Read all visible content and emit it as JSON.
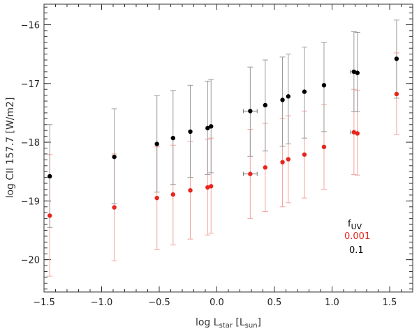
{
  "chart_data": {
    "type": "scatter",
    "title": "",
    "xlabel": "log L_star [L_sun]",
    "ylabel": "log CII 157.7 [W/m2]",
    "xlim": [
      -1.5,
      1.7
    ],
    "ylim": [
      -20.55,
      -15.65
    ],
    "xticks": [
      -1.5,
      -1.0,
      -0.5,
      0.0,
      0.5,
      1.0,
      1.5
    ],
    "xtick_labels": [
      "−1.5",
      "−1.0",
      "−0.5",
      "0.0",
      "0.5",
      "1.0",
      "1.5"
    ],
    "yticks": [
      -20,
      -19,
      -18,
      -17,
      -16
    ],
    "ytick_labels": [
      "−20",
      "−19",
      "−18",
      "−17",
      "−16"
    ],
    "grid": false,
    "legend": {
      "placement": "bottom-right",
      "title": "f_UV",
      "entries": [
        {
          "label": "0.001",
          "color": "#e8251c"
        },
        {
          "label": "0.1",
          "color": "#000000"
        }
      ]
    },
    "series": [
      {
        "name": "0.1",
        "color": "#000000",
        "points": [
          {
            "x": -1.45,
            "y": -18.58,
            "ylo": -19.45,
            "yhi": -17.7
          },
          {
            "x": -0.89,
            "y": -18.25,
            "ylo": -19.05,
            "yhi": -17.43
          },
          {
            "x": -0.52,
            "y": -18.03,
            "ylo": -18.85,
            "yhi": -17.21
          },
          {
            "x": -0.38,
            "y": -17.93,
            "ylo": -18.72,
            "yhi": -17.12
          },
          {
            "x": -0.23,
            "y": -17.82,
            "ylo": -18.6,
            "yhi": -17.03
          },
          {
            "x": -0.08,
            "y": -17.76,
            "ylo": -18.55,
            "yhi": -16.96
          },
          {
            "x": -0.05,
            "y": -17.73,
            "ylo": -18.52,
            "yhi": -16.93
          },
          {
            "x": 0.29,
            "y": -17.47,
            "ylo": -18.24,
            "yhi": -16.72,
            "xerr": 0.06
          },
          {
            "x": 0.42,
            "y": -17.37,
            "ylo": -18.15,
            "yhi": -16.6
          },
          {
            "x": 0.57,
            "y": -17.28,
            "ylo": -18.07,
            "yhi": -16.55
          },
          {
            "x": 0.62,
            "y": -17.22,
            "ylo": -18.03,
            "yhi": -16.5
          },
          {
            "x": 0.76,
            "y": -17.14,
            "ylo": -17.93,
            "yhi": -16.38
          },
          {
            "x": 0.93,
            "y": -17.03,
            "ylo": -17.82,
            "yhi": -16.3
          },
          {
            "x": 1.19,
            "y": -16.8,
            "ylo": -17.48,
            "yhi": -16.12,
            "xerr": 0.03
          },
          {
            "x": 1.22,
            "y": -16.82,
            "ylo": -17.48,
            "yhi": -16.13
          },
          {
            "x": 1.56,
            "y": -16.58,
            "ylo": -17.25,
            "yhi": -15.92
          }
        ]
      },
      {
        "name": "0.001",
        "color": "#e8251c",
        "points": [
          {
            "x": -1.45,
            "y": -19.25,
            "ylo": -20.28,
            "yhi": -18.21
          },
          {
            "x": -0.89,
            "y": -19.11,
            "ylo": -20.02,
            "yhi": -18.2
          },
          {
            "x": -0.52,
            "y": -18.95,
            "ylo": -19.83,
            "yhi": -18.08
          },
          {
            "x": -0.38,
            "y": -18.89,
            "ylo": -19.75,
            "yhi": -18.05
          },
          {
            "x": -0.23,
            "y": -18.82,
            "ylo": -19.65,
            "yhi": -17.99
          },
          {
            "x": -0.08,
            "y": -18.77,
            "ylo": -19.58,
            "yhi": -17.95
          },
          {
            "x": -0.05,
            "y": -18.75,
            "ylo": -19.55,
            "yhi": -17.93
          },
          {
            "x": 0.29,
            "y": -18.54,
            "ylo": -19.3,
            "yhi": -17.78,
            "xerr": 0.06
          },
          {
            "x": 0.42,
            "y": -18.43,
            "ylo": -19.18,
            "yhi": -17.68
          },
          {
            "x": 0.57,
            "y": -18.34,
            "ylo": -19.1,
            "yhi": -17.6
          },
          {
            "x": 0.62,
            "y": -18.29,
            "ylo": -19.03,
            "yhi": -17.55
          },
          {
            "x": 0.76,
            "y": -18.21,
            "ylo": -18.95,
            "yhi": -17.47
          },
          {
            "x": 0.93,
            "y": -18.08,
            "ylo": -18.8,
            "yhi": -17.36
          },
          {
            "x": 1.19,
            "y": -17.83,
            "ylo": -18.55,
            "yhi": -17.1,
            "xerr": 0.03
          },
          {
            "x": 1.22,
            "y": -17.85,
            "ylo": -18.56,
            "yhi": -17.12
          },
          {
            "x": 1.56,
            "y": -17.18,
            "ylo": -17.87,
            "yhi": -16.48
          }
        ]
      }
    ]
  }
}
